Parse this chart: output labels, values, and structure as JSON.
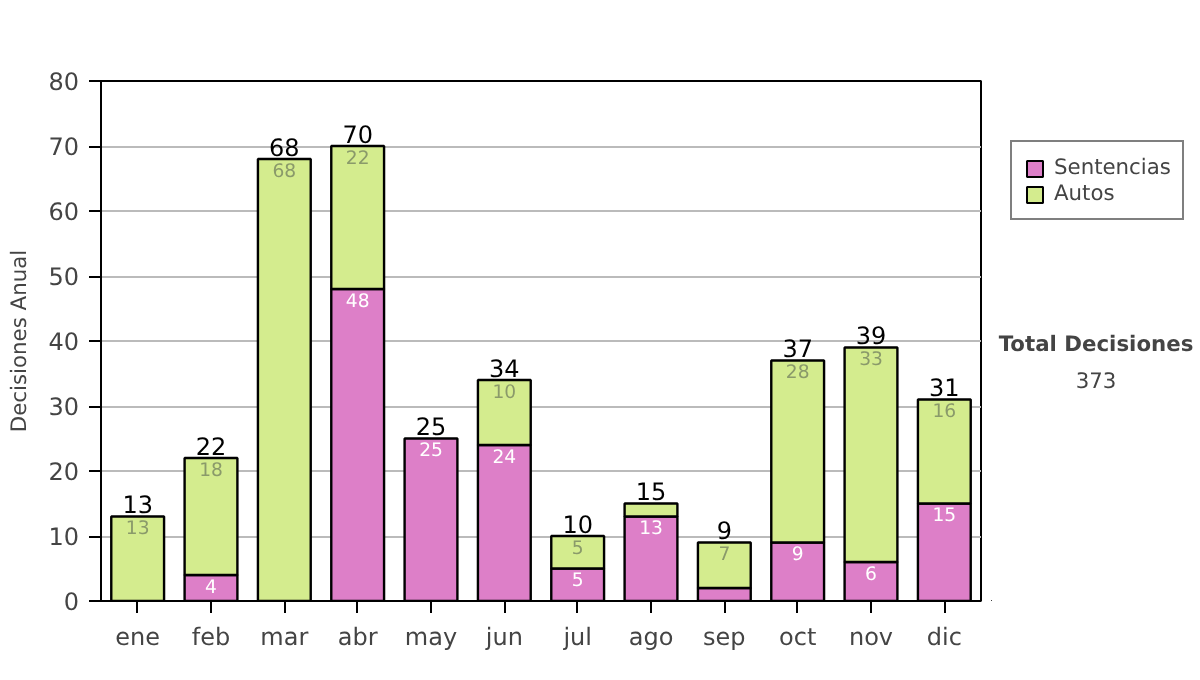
{
  "chart_data": {
    "type": "bar",
    "stacked": true,
    "ylabel": "Decisiones Anual",
    "categories": [
      "ene",
      "feb",
      "mar",
      "abr",
      "may",
      "jun",
      "jul",
      "ago",
      "sep",
      "oct",
      "nov",
      "dic"
    ],
    "series": [
      {
        "name": "Sentencias",
        "color": "#dd7fc8",
        "values": [
          0,
          4,
          0,
          48,
          25,
          24,
          5,
          13,
          2,
          9,
          6,
          15
        ],
        "value_labels": [
          null,
          "4",
          null,
          "48",
          "25",
          "24",
          "5",
          "13",
          null,
          "9",
          "6",
          "15"
        ]
      },
      {
        "name": "Autos",
        "color": "#d4ec8e",
        "values": [
          13,
          18,
          68,
          22,
          0,
          10,
          5,
          2,
          7,
          28,
          33,
          16
        ],
        "value_labels": [
          "13",
          "18",
          "68",
          "22",
          null,
          "10",
          "5",
          null,
          "7",
          "28",
          "33",
          "16"
        ]
      }
    ],
    "totals": [
      "13",
      "22",
      "68",
      "70",
      "25",
      "34",
      "10",
      "15",
      "9",
      "37",
      "39",
      "31"
    ],
    "ylim": [
      0,
      80
    ],
    "yticks": [
      0,
      10,
      20,
      30,
      40,
      50,
      60,
      70,
      80
    ],
    "grid": "y",
    "legend": "right",
    "annotations": [
      "Total Decisiones",
      "373"
    ]
  }
}
